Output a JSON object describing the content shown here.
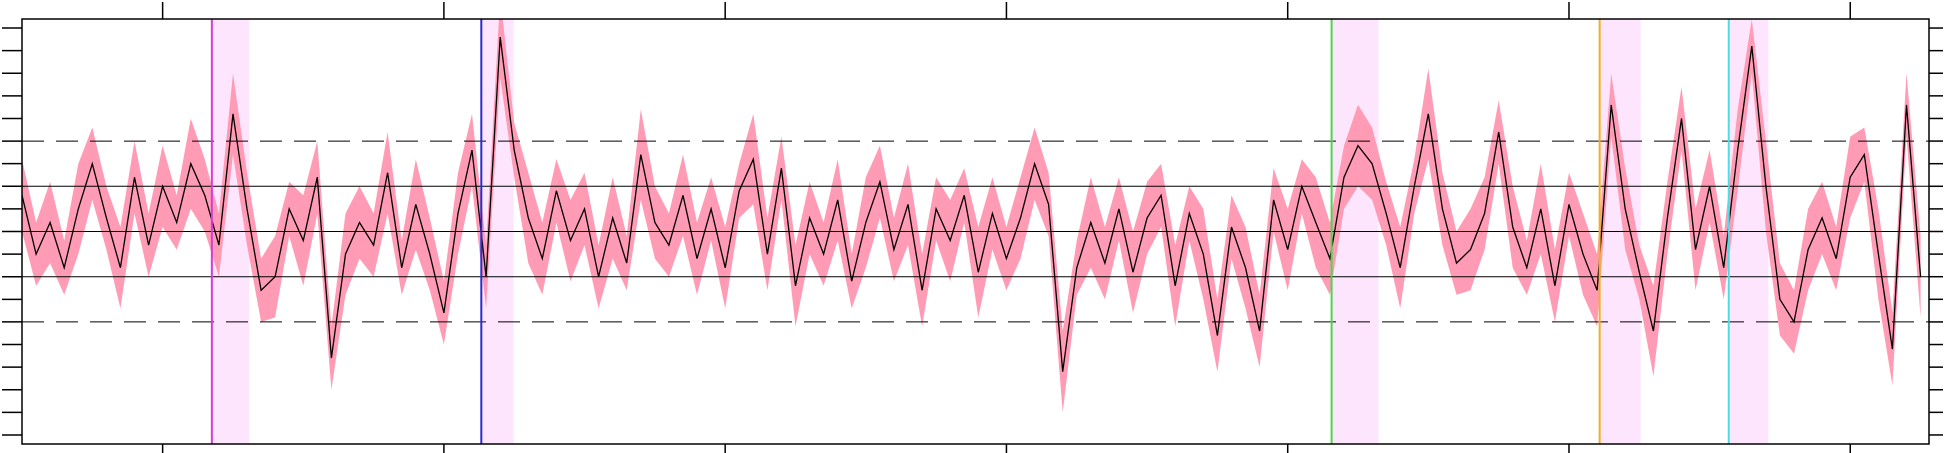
{
  "chart_data": {
    "type": "line",
    "x": [
      0,
      5,
      10,
      15,
      20,
      25,
      30,
      35,
      40,
      45,
      50,
      55,
      60,
      65,
      70,
      75,
      80,
      85,
      90,
      95,
      100,
      105,
      110,
      115,
      120,
      125,
      130,
      135,
      140,
      145,
      150,
      155,
      160,
      165,
      170,
      175,
      180,
      185,
      190,
      195,
      200,
      205,
      210,
      215,
      220,
      225,
      230,
      235,
      240,
      245,
      250,
      255,
      260,
      265,
      270,
      275,
      280,
      285,
      290,
      295,
      300,
      305,
      310,
      315,
      320,
      325,
      330,
      335,
      340,
      345,
      350,
      355,
      360,
      365,
      370,
      375,
      380,
      385,
      390,
      395,
      400,
      405,
      410,
      415,
      420,
      425,
      430,
      435,
      440,
      445,
      450,
      455,
      460,
      465,
      470,
      475,
      480,
      485,
      490,
      495,
      500,
      505,
      510,
      515,
      520,
      525,
      530,
      535,
      540,
      545,
      550,
      555,
      560,
      565,
      570,
      575,
      580,
      585,
      590,
      595,
      600,
      605,
      610,
      615,
      620,
      625,
      630,
      635,
      640,
      645,
      650,
      655,
      660,
      665,
      670,
      675
    ],
    "series": [
      {
        "color": "#000000",
        "values": [
          0.8,
          -0.5,
          0.2,
          -0.8,
          0.5,
          1.5,
          0.3,
          -0.8,
          1.2,
          -0.3,
          1.0,
          0.2,
          1.5,
          0.8,
          -0.3,
          2.6,
          0.5,
          -1.3,
          -1.0,
          0.5,
          -0.2,
          1.2,
          -2.8,
          -0.5,
          0.2,
          -0.3,
          1.3,
          -0.8,
          0.6,
          -0.5,
          -1.8,
          0.4,
          1.8,
          -1.0,
          4.3,
          1.8,
          0.3,
          -0.6,
          0.9,
          -0.2,
          0.5,
          -1.0,
          0.3,
          -0.7,
          1.7,
          0.2,
          -0.3,
          0.8,
          -0.6,
          0.5,
          -0.8,
          0.9,
          1.6,
          -0.5,
          1.4,
          -1.2,
          0.3,
          -0.5,
          0.7,
          -1.1,
          0.2,
          1.1,
          -0.4,
          0.6,
          -1.3,
          0.5,
          -0.2,
          0.8,
          -0.9,
          0.4,
          -0.6,
          0.3,
          1.5,
          0.6,
          -3.1,
          -0.8,
          0.2,
          -0.7,
          0.5,
          -0.9,
          0.3,
          0.8,
          -1.2,
          0.4,
          -0.5,
          -2.3,
          0.1,
          -0.8,
          -2.2,
          0.7,
          -0.4,
          1.0,
          0.2,
          -0.6,
          1.2,
          1.9,
          1.5,
          0.4,
          -0.8,
          1.0,
          2.6,
          0.5,
          -0.7,
          -0.4,
          0.4,
          2.2,
          0.1,
          -0.8,
          0.5,
          -1.2,
          0.6,
          -0.5,
          -1.3,
          2.8,
          0.5,
          -0.9,
          -2.2,
          0.3,
          2.5,
          -0.4,
          1.0,
          -0.8,
          1.8,
          4.1,
          1.0,
          -1.5,
          -2.0,
          -0.4,
          0.3,
          -0.6,
          1.2,
          1.7,
          -0.5,
          -2.6,
          2.8,
          -1.0
        ]
      }
    ],
    "band": {
      "color": "#ff9bb5",
      "half_width": [
        0.8,
        0.7,
        0.9,
        0.6,
        1.0,
        0.8,
        0.7,
        0.9,
        0.8,
        0.7,
        0.9,
        0.6,
        1.0,
        0.8,
        0.7,
        0.9,
        0.8,
        0.7,
        0.9,
        0.6,
        1.0,
        0.8,
        0.7,
        0.9,
        0.8,
        0.7,
        0.9,
        0.6,
        1.0,
        0.8,
        0.7,
        0.9,
        0.8,
        0.7,
        0.9,
        0.6,
        1.0,
        0.8,
        0.7,
        0.9,
        0.8,
        0.7,
        0.9,
        0.6,
        1.0,
        0.8,
        0.7,
        0.9,
        0.8,
        0.7,
        0.9,
        0.6,
        1.0,
        0.8,
        0.7,
        0.9,
        0.8,
        0.7,
        0.9,
        0.6,
        1.0,
        0.8,
        0.7,
        0.9,
        0.8,
        0.7,
        0.9,
        0.6,
        1.0,
        0.8,
        0.7,
        0.9,
        0.8,
        0.7,
        0.9,
        0.6,
        1.0,
        0.8,
        0.7,
        0.9,
        0.8,
        0.7,
        0.9,
        0.6,
        1.0,
        0.8,
        0.7,
        0.9,
        0.8,
        0.7,
        0.9,
        0.6,
        1.0,
        0.8,
        0.7,
        0.9,
        0.8,
        0.7,
        0.9,
        0.6,
        1.0,
        0.8,
        0.7,
        0.9,
        0.8,
        0.7,
        0.9,
        0.6,
        1.0,
        0.8,
        0.7,
        0.9,
        0.8,
        0.7,
        0.9,
        0.6,
        1.0,
        0.8,
        0.7,
        0.9,
        0.8,
        0.7,
        0.9,
        0.6,
        1.0,
        0.8,
        0.7,
        0.9,
        0.8,
        0.7,
        0.9,
        0.6,
        1.0,
        0.8,
        0.7,
        0.9,
        0.8,
        0.7,
        0.9,
        0.6,
        1.0,
        0.8,
        0.7,
        0.9
      ]
    },
    "events": [
      {
        "x": 67.5,
        "x_end": 80.8,
        "color": "#d63bd6"
      },
      {
        "x": 163.3,
        "x_end": 174.8,
        "color": "#2a2ad0"
      },
      {
        "x": 465.6,
        "x_end": 482.3,
        "color": "#4cd64c"
      },
      {
        "x": 560.9,
        "x_end": 575.5,
        "color": "#f2b01e"
      },
      {
        "x": 606.8,
        "x_end": 620.9,
        "color": "#4cdde6"
      }
    ],
    "event_shade_color": "#fde6fd",
    "hlines": [
      {
        "y": 2,
        "style": "dashed"
      },
      {
        "y": 1,
        "style": "solid"
      },
      {
        "y": 0,
        "style": "solid"
      },
      {
        "y": -1,
        "style": "solid"
      },
      {
        "y": -2,
        "style": "dashed"
      }
    ],
    "xlim": [
      0,
      678
    ],
    "xticks": [
      50,
      150,
      250,
      350,
      450,
      550,
      650
    ],
    "ylim": [
      -4.7,
      4.7
    ],
    "yticks": [
      -4.5,
      -4,
      -3.5,
      -3,
      -2.5,
      -2,
      -1.5,
      -1,
      -0.5,
      0,
      0.5,
      1,
      1.5,
      2,
      2.5,
      3,
      3.5,
      4,
      4.5
    ]
  }
}
